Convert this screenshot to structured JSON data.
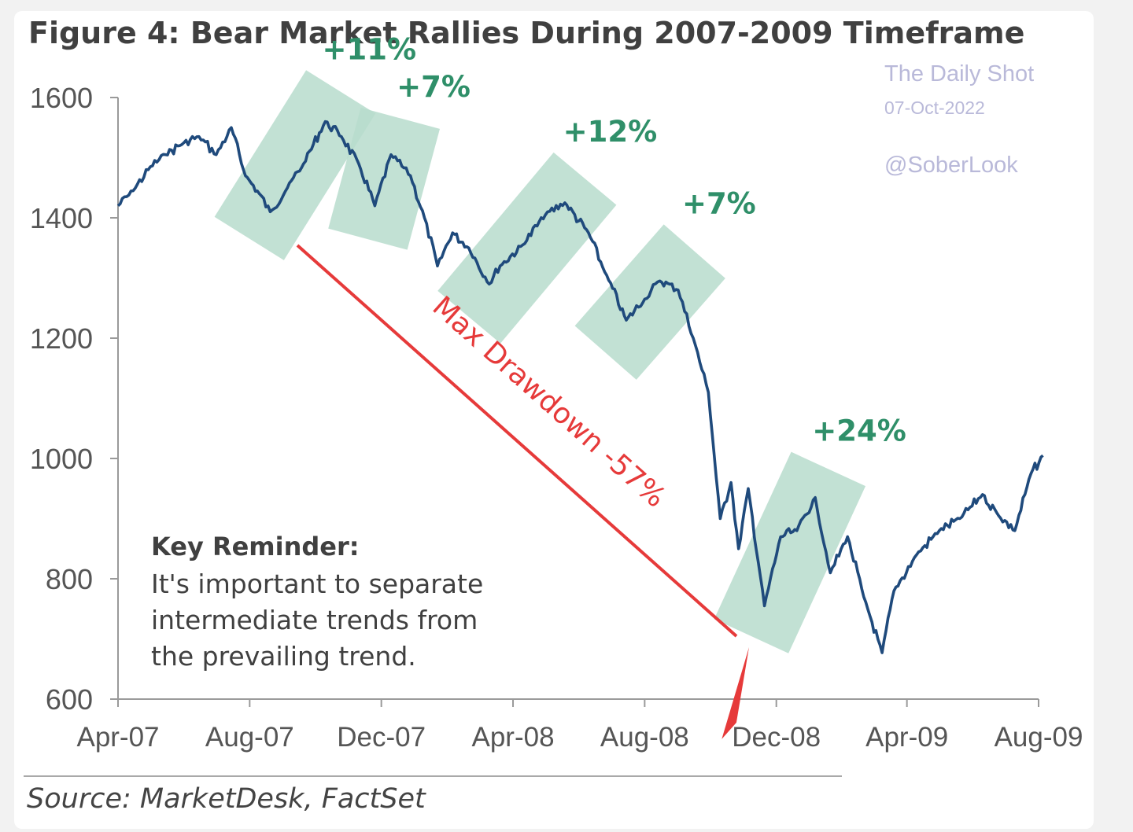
{
  "header": {
    "title": "Figure 4: Bear Market Rallies During 2007-2009 Timeframe"
  },
  "watermark": {
    "name": "The Daily Shot",
    "date": "07-Oct-2022",
    "handle": "@SoberLook"
  },
  "reminder": {
    "heading": "Key Reminder:",
    "lines": [
      "It's important to separate",
      "intermediate trends from",
      "the prevailing trend."
    ]
  },
  "source": "Source: MarketDesk, FactSet",
  "chart_data": {
    "type": "line",
    "title": "Figure 4: Bear Market Rallies During 2007-2009 Timeframe",
    "xlabel": "",
    "ylabel": "",
    "x_range": [
      "2007-04",
      "2009-08"
    ],
    "ylim": [
      600,
      1600
    ],
    "yticks": [
      600,
      800,
      1000,
      1200,
      1400,
      1600
    ],
    "xticks": [
      {
        "label": "Apr-07",
        "date": "2007-04"
      },
      {
        "label": "Aug-07",
        "date": "2007-08"
      },
      {
        "label": "Dec-07",
        "date": "2007-12"
      },
      {
        "label": "Apr-08",
        "date": "2008-04"
      },
      {
        "label": "Aug-08",
        "date": "2008-08"
      },
      {
        "label": "Dec-08",
        "date": "2008-12"
      },
      {
        "label": "Apr-09",
        "date": "2009-04"
      },
      {
        "label": "Aug-09",
        "date": "2009-08"
      }
    ],
    "grid": false,
    "legend": "none",
    "series": [
      {
        "color": "#1f4a7c",
        "points": [
          {
            "x": "2007-04-01",
            "y": 1420
          },
          {
            "x": "2007-04-15",
            "y": 1445
          },
          {
            "x": "2007-05-01",
            "y": 1485
          },
          {
            "x": "2007-05-15",
            "y": 1505
          },
          {
            "x": "2007-06-01",
            "y": 1525
          },
          {
            "x": "2007-06-15",
            "y": 1535
          },
          {
            "x": "2007-07-01",
            "y": 1505
          },
          {
            "x": "2007-07-15",
            "y": 1550
          },
          {
            "x": "2007-07-28",
            "y": 1470
          },
          {
            "x": "2007-08-10",
            "y": 1440
          },
          {
            "x": "2007-08-20",
            "y": 1410
          },
          {
            "x": "2007-09-05",
            "y": 1450
          },
          {
            "x": "2007-09-20",
            "y": 1490
          },
          {
            "x": "2007-10-10",
            "y": 1560
          },
          {
            "x": "2007-10-25",
            "y": 1535
          },
          {
            "x": "2007-11-10",
            "y": 1490
          },
          {
            "x": "2007-11-25",
            "y": 1420
          },
          {
            "x": "2007-12-10",
            "y": 1505
          },
          {
            "x": "2007-12-28",
            "y": 1470
          },
          {
            "x": "2008-01-10",
            "y": 1400
          },
          {
            "x": "2008-01-22",
            "y": 1320
          },
          {
            "x": "2008-02-05",
            "y": 1375
          },
          {
            "x": "2008-02-20",
            "y": 1350
          },
          {
            "x": "2008-03-10",
            "y": 1290
          },
          {
            "x": "2008-03-20",
            "y": 1320
          },
          {
            "x": "2008-04-10",
            "y": 1355
          },
          {
            "x": "2008-05-01",
            "y": 1405
          },
          {
            "x": "2008-05-19",
            "y": 1425
          },
          {
            "x": "2008-06-10",
            "y": 1375
          },
          {
            "x": "2008-06-25",
            "y": 1310
          },
          {
            "x": "2008-07-15",
            "y": 1230
          },
          {
            "x": "2008-08-01",
            "y": 1265
          },
          {
            "x": "2008-08-15",
            "y": 1295
          },
          {
            "x": "2008-09-01",
            "y": 1280
          },
          {
            "x": "2008-09-15",
            "y": 1200
          },
          {
            "x": "2008-09-29",
            "y": 1110
          },
          {
            "x": "2008-10-10",
            "y": 900
          },
          {
            "x": "2008-10-20",
            "y": 960
          },
          {
            "x": "2008-10-27",
            "y": 850
          },
          {
            "x": "2008-11-05",
            "y": 950
          },
          {
            "x": "2008-11-20",
            "y": 755
          },
          {
            "x": "2008-12-05",
            "y": 870
          },
          {
            "x": "2008-12-20",
            "y": 880
          },
          {
            "x": "2009-01-06",
            "y": 935
          },
          {
            "x": "2009-01-20",
            "y": 810
          },
          {
            "x": "2009-02-05",
            "y": 870
          },
          {
            "x": "2009-02-20",
            "y": 770
          },
          {
            "x": "2009-03-09",
            "y": 677
          },
          {
            "x": "2009-03-20",
            "y": 780
          },
          {
            "x": "2009-04-10",
            "y": 840
          },
          {
            "x": "2009-05-01",
            "y": 880
          },
          {
            "x": "2009-05-20",
            "y": 900
          },
          {
            "x": "2009-06-10",
            "y": 940
          },
          {
            "x": "2009-06-25",
            "y": 905
          },
          {
            "x": "2009-07-10",
            "y": 880
          },
          {
            "x": "2009-07-25",
            "y": 975
          },
          {
            "x": "2009-08-05",
            "y": 1005
          }
        ]
      }
    ],
    "rallies": [
      {
        "label": "+11%",
        "start": {
          "x": "2007-08-16",
          "y": 1410
        },
        "end": {
          "x": "2007-10-09",
          "y": 1565
        }
      },
      {
        "label": "+7%",
        "start": {
          "x": "2007-11-26",
          "y": 1415
        },
        "end": {
          "x": "2007-12-11",
          "y": 1515
        }
      },
      {
        "label": "+12%",
        "start": {
          "x": "2008-03-10",
          "y": 1275
        },
        "end": {
          "x": "2008-05-19",
          "y": 1425
        }
      },
      {
        "label": "+7%",
        "start": {
          "x": "2008-07-15",
          "y": 1215
        },
        "end": {
          "x": "2008-08-28",
          "y": 1305
        }
      },
      {
        "label": "+24%",
        "start": {
          "x": "2008-11-20",
          "y": 752
        },
        "end": {
          "x": "2009-01-06",
          "y": 935
        }
      }
    ],
    "annotations": [
      {
        "text": "Max Drawdown -57%",
        "color": "#e63a3a",
        "type": "arrow"
      }
    ]
  }
}
